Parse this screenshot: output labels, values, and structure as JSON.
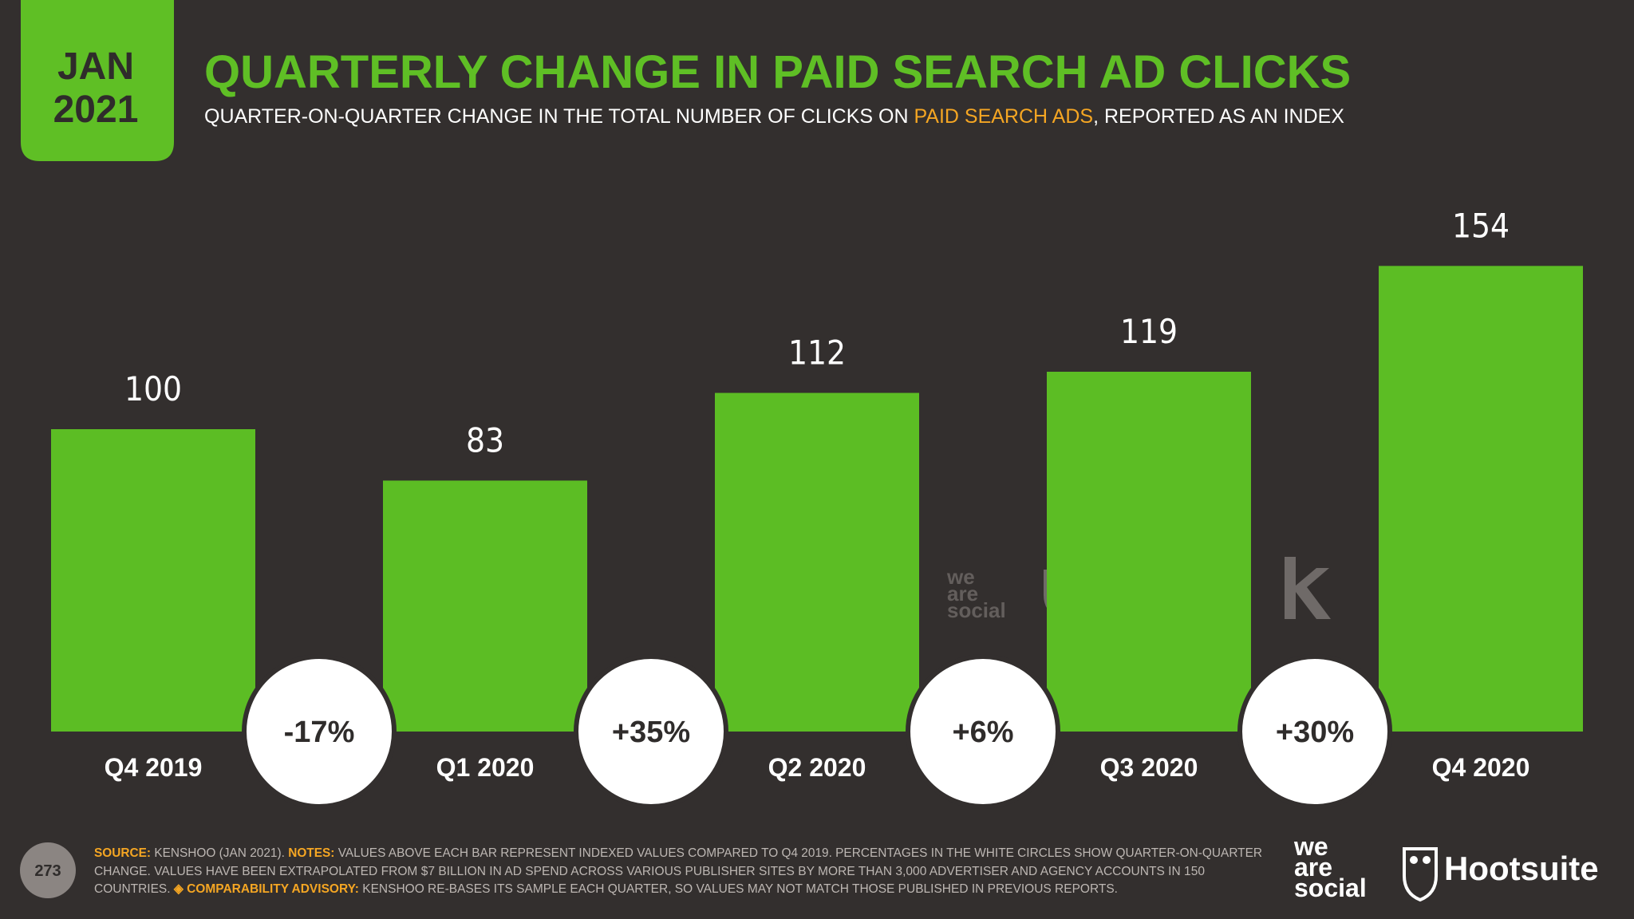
{
  "chart_data": {
    "type": "bar",
    "badge": {
      "month": "JAN",
      "year": "2021"
    },
    "title": "QUARTERLY CHANGE IN PAID SEARCH AD CLICKS",
    "subtitle": [
      "QUARTER-ON-QUARTER CHANGE IN THE TOTAL NUMBER OF CLICKS ON ",
      "PAID SEARCH ADS",
      ", REPORTED AS AN INDEX"
    ],
    "categories": [
      "Q4 2019",
      "Q1 2020",
      "Q2 2020",
      "Q3 2020",
      "Q4 2020"
    ],
    "values": [
      100,
      83,
      112,
      119,
      154
    ],
    "color": "#5cbd24",
    "changes": {
      "values": [
        -17,
        35,
        6,
        30
      ],
      "value_labels": [
        "-17%",
        "+35%",
        "+6%",
        "+30%"
      ]
    },
    "footer": {
      "page": "273",
      "lines": [
        [
          "SOURCE:",
          " KENSHOO (JAN 2021). ",
          "NOTES:",
          " VALUES ABOVE EACH BAR REPRESENT INDEXED VALUES COMPARED TO Q4 2019. PERCENTAGES IN THE WHITE CIRCLES SHOW QUARTER-ON-QUARTER"
        ],
        [
          "CHANGE. VALUES HAVE BEEN EXTRAPOLATED FROM $7 BILLION IN AD SPEND ACROSS VARIOUS PUBLISHER SITES BY MORE THAN 3,000 ADVERTISER AND AGENCY ACCOUNTS IN 150"
        ],
        [
          "COUNTRIES. ",
          "◈ COMPARABILITY ADVISORY:",
          " KENSHOO RE-BASES ITS SAMPLE EACH QUARTER, SO VALUES MAY NOT MATCH THOSE PUBLISHED IN PREVIOUS REPORTS."
        ]
      ]
    },
    "logos": {
      "wearesocial": [
        "we",
        "are",
        "social"
      ],
      "hootsuite": "Hootsuite"
    }
  }
}
